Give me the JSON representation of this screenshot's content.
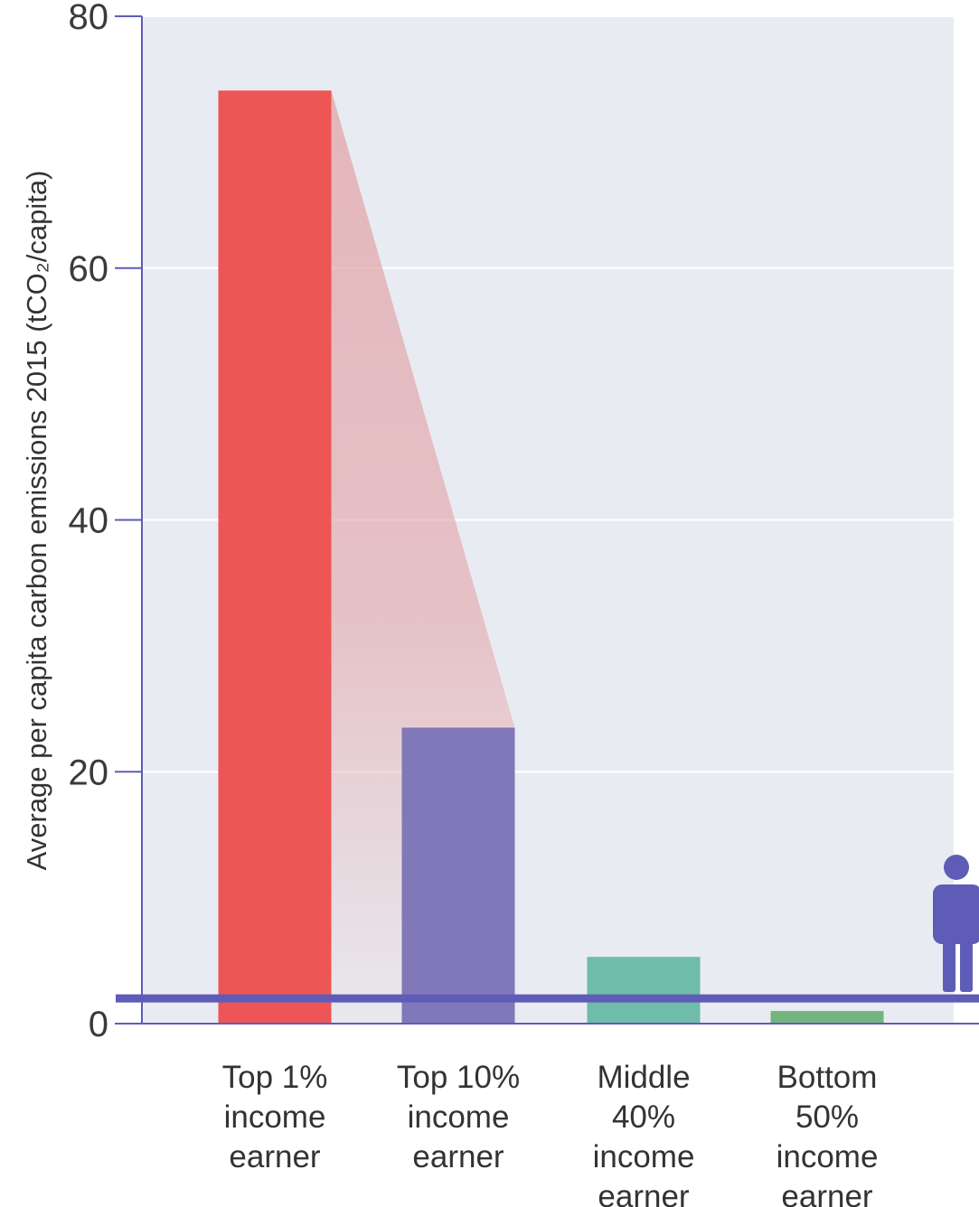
{
  "chart_data": {
    "type": "bar",
    "ylabel": "Average per capita carbon emissions 2015 (tCO₂/capita)",
    "xlabel": "",
    "ylim": [
      0,
      80
    ],
    "yticks": [
      0,
      20,
      40,
      60,
      80
    ],
    "grid": true,
    "categories": [
      [
        "Top 1%",
        "income",
        "earner"
      ],
      [
        "Top 10%",
        "income",
        "earner"
      ],
      [
        "Middle",
        "40%",
        "income",
        "earner"
      ],
      [
        "Bottom",
        "50%",
        "income",
        "earner"
      ]
    ],
    "values": [
      74.1,
      23.5,
      5.3,
      1.0
    ],
    "colors": [
      "#ee5555",
      "#8078b8",
      "#6fbcaa",
      "#74b47f"
    ],
    "reference_line": {
      "value": 2.0,
      "color": "#5f5cb8",
      "icon": "person-icon"
    },
    "funnel_color": "#e3a4a8"
  },
  "colors": {
    "plot_background": "#e8ecf2",
    "axis": "#5f5cb8"
  }
}
